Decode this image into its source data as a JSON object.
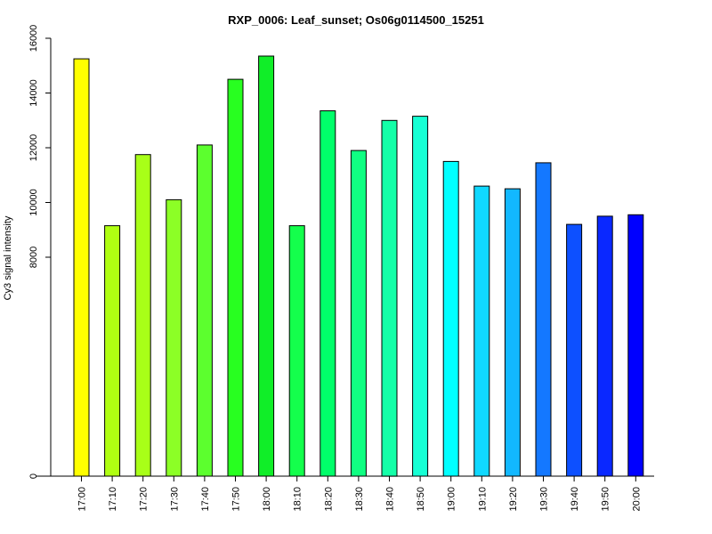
{
  "chart_data": {
    "type": "bar",
    "title": "RXP_0006: Leaf_sunset; Os06g0114500_15251",
    "xlabel": "",
    "ylabel": "Cy3 signal intensity",
    "ylim": [
      0,
      16000
    ],
    "y_ticks": [
      0,
      8000,
      10000,
      12000,
      14000,
      16000
    ],
    "categories": [
      "17:00",
      "17:10",
      "17:20",
      "17:30",
      "17:40",
      "17:50",
      "18:00",
      "18:10",
      "18:20",
      "18:30",
      "18:40",
      "18:50",
      "19:00",
      "19:10",
      "19:20",
      "19:30",
      "19:40",
      "19:50",
      "20:00"
    ],
    "values": [
      15250,
      9150,
      11750,
      10100,
      12100,
      14500,
      15350,
      9150,
      13350,
      11900,
      13000,
      13150,
      11500,
      10600,
      10500,
      11450,
      9200,
      9500,
      9550
    ],
    "colors": [
      "#ffff00",
      "#b0ff12",
      "#a8ff18",
      "#8cff26",
      "#5cff2e",
      "#28ff20",
      "#10ee28",
      "#14ff4c",
      "#00ff6a",
      "#10ff82",
      "#14ffa8",
      "#16ffd4",
      "#00ffff",
      "#10d8ff",
      "#12b8ff",
      "#1478ff",
      "#0d50ff",
      "#0a28ff",
      "#0000ff"
    ],
    "grid": false,
    "legend": "none"
  }
}
